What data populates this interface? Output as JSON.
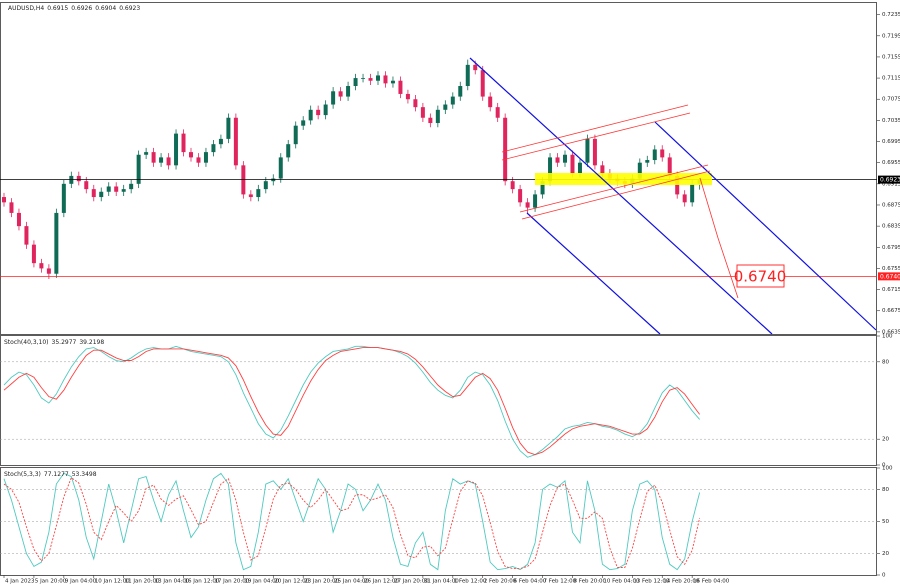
{
  "chart_data": [
    {
      "type": "candlestick",
      "title": "AUDUSD,H4",
      "categories": [
        "4 Jan 2023",
        null,
        null,
        null,
        "5 Jan 20:00",
        null,
        null,
        null,
        "9 Jan 04:00",
        null,
        null,
        null,
        "10 Jan 12:00",
        null,
        null,
        null,
        "11 Jan 20:00",
        null,
        null,
        null,
        "13 Jan 04:00",
        null,
        null,
        null,
        "16 Jan 12:00",
        null,
        null,
        null,
        "17 Jan 20:00",
        null,
        null,
        null,
        "19 Jan 04:00",
        null,
        null,
        null,
        "20 Jan 12:00",
        null,
        null,
        null,
        "23 Jan 20:00",
        null,
        null,
        null,
        "25 Jan 04:00",
        null,
        null,
        null,
        "26 Jan 12:00",
        null,
        null,
        null,
        "27 Jan 20:00",
        null,
        null,
        null,
        "31 Jan 04:00",
        null,
        null,
        null,
        "1 Feb 12:00",
        null,
        null,
        null,
        "2 Feb 20:00",
        null,
        null,
        null,
        "6 Feb 04:00",
        null,
        null,
        null,
        "7 Feb 12:00",
        null,
        null,
        null,
        "8 Feb 20:00",
        null,
        null,
        null,
        "10 Feb 04:00",
        null,
        null,
        null,
        "13 Feb 12:00",
        null,
        null,
        null,
        "14 Feb 20:00",
        null,
        null,
        null,
        "16 Feb 04:00",
        null
      ],
      "open": [
        0.689,
        0.688,
        0.686,
        0.6835,
        0.68,
        0.6765,
        0.6755,
        0.6745,
        0.686,
        0.6915,
        0.693,
        0.692,
        0.6905,
        0.689,
        0.69,
        0.691,
        0.69,
        0.6905,
        0.6915,
        0.697,
        0.6975,
        0.6955,
        0.6965,
        0.695,
        0.701,
        0.6975,
        0.6965,
        0.6955,
        0.6975,
        0.699,
        0.7,
        0.704,
        0.695,
        0.6895,
        0.689,
        0.6905,
        0.692,
        0.6925,
        0.6965,
        0.699,
        0.7025,
        0.7035,
        0.7055,
        0.7045,
        0.7065,
        0.709,
        0.708,
        0.71,
        0.7115,
        0.7115,
        0.711,
        0.712,
        0.7105,
        0.711,
        0.7085,
        0.7075,
        0.706,
        0.704,
        0.703,
        0.7055,
        0.7065,
        0.708,
        0.71,
        0.714,
        0.713,
        0.708,
        0.706,
        0.704,
        0.692,
        0.6905,
        0.688,
        0.687,
        0.6895,
        0.692,
        0.6965,
        0.6955,
        0.697,
        0.6935,
        0.6955,
        0.7,
        0.695,
        0.6935,
        0.6925,
        0.692,
        0.6915,
        0.6925,
        0.6955,
        0.696,
        0.698,
        0.6965,
        0.693,
        0.6895,
        0.688,
        0.6915
      ],
      "high": [
        0.6898,
        0.6888,
        0.6868,
        0.6843,
        0.6808,
        0.6773,
        0.6763,
        0.6868,
        0.6923,
        0.6938,
        0.6938,
        0.6928,
        0.6913,
        0.6908,
        0.6918,
        0.6918,
        0.6913,
        0.6923,
        0.6978,
        0.6983,
        0.6983,
        0.6973,
        0.6973,
        0.7018,
        0.7018,
        0.6983,
        0.6973,
        0.6983,
        0.6998,
        0.7008,
        0.7048,
        0.7048,
        0.6958,
        0.6903,
        0.6913,
        0.6928,
        0.6933,
        0.6973,
        0.6998,
        0.7033,
        0.7043,
        0.7063,
        0.7063,
        0.7073,
        0.7098,
        0.7098,
        0.7108,
        0.7123,
        0.7123,
        0.7123,
        0.7128,
        0.7128,
        0.7118,
        0.7118,
        0.7093,
        0.7083,
        0.7068,
        0.7048,
        0.7063,
        0.7073,
        0.7088,
        0.7108,
        0.715,
        0.7148,
        0.7138,
        0.7088,
        0.7068,
        0.7048,
        0.6928,
        0.6913,
        0.6888,
        0.6903,
        0.6928,
        0.6973,
        0.6973,
        0.6978,
        0.6978,
        0.6963,
        0.7008,
        0.7008,
        0.6958,
        0.6943,
        0.6933,
        0.6928,
        0.6933,
        0.6963,
        0.6968,
        0.6988,
        0.6988,
        0.6973,
        0.6938,
        0.6903,
        0.6923,
        0.6926
      ],
      "low": [
        0.6872,
        0.6852,
        0.6827,
        0.6792,
        0.6757,
        0.6747,
        0.6735,
        0.6737,
        0.6852,
        0.6907,
        0.6912,
        0.6897,
        0.6882,
        0.6882,
        0.6892,
        0.6892,
        0.6892,
        0.6897,
        0.6907,
        0.6962,
        0.6947,
        0.6947,
        0.6942,
        0.6942,
        0.6967,
        0.6957,
        0.6947,
        0.6947,
        0.6967,
        0.6982,
        0.6992,
        0.6942,
        0.6887,
        0.6882,
        0.6882,
        0.6897,
        0.6912,
        0.6917,
        0.6957,
        0.6982,
        0.7017,
        0.7027,
        0.7037,
        0.7037,
        0.7057,
        0.7072,
        0.7072,
        0.7092,
        0.7107,
        0.7102,
        0.7102,
        0.7097,
        0.7097,
        0.7077,
        0.7067,
        0.7052,
        0.7032,
        0.7022,
        0.7022,
        0.7047,
        0.7057,
        0.7072,
        0.7092,
        0.7122,
        0.7072,
        0.7052,
        0.7032,
        0.6912,
        0.6897,
        0.6872,
        0.6858,
        0.6862,
        0.6887,
        0.6912,
        0.6947,
        0.6947,
        0.6927,
        0.6927,
        0.6947,
        0.6942,
        0.6927,
        0.6917,
        0.6912,
        0.6907,
        0.6907,
        0.6917,
        0.6947,
        0.6952,
        0.6957,
        0.6922,
        0.6887,
        0.6872,
        0.6872,
        0.6904
      ],
      "close": [
        0.688,
        0.686,
        0.6835,
        0.68,
        0.6765,
        0.6755,
        0.6745,
        0.686,
        0.6915,
        0.693,
        0.692,
        0.6905,
        0.689,
        0.69,
        0.691,
        0.69,
        0.6905,
        0.6915,
        0.697,
        0.6975,
        0.6955,
        0.6965,
        0.695,
        0.701,
        0.6975,
        0.6965,
        0.6955,
        0.6975,
        0.699,
        0.7,
        0.704,
        0.695,
        0.6895,
        0.689,
        0.6905,
        0.692,
        0.6925,
        0.6965,
        0.699,
        0.7025,
        0.7035,
        0.7055,
        0.7045,
        0.7065,
        0.709,
        0.708,
        0.71,
        0.7115,
        0.7115,
        0.711,
        0.712,
        0.7105,
        0.711,
        0.7085,
        0.7075,
        0.706,
        0.704,
        0.703,
        0.7055,
        0.7065,
        0.708,
        0.71,
        0.714,
        0.713,
        0.708,
        0.706,
        0.704,
        0.692,
        0.6905,
        0.688,
        0.687,
        0.6895,
        0.692,
        0.6965,
        0.6955,
        0.697,
        0.6935,
        0.6955,
        0.7,
        0.695,
        0.6935,
        0.6925,
        0.692,
        0.6915,
        0.6925,
        0.6955,
        0.696,
        0.698,
        0.6965,
        0.693,
        0.6895,
        0.688,
        0.6915,
        0.6923
      ],
      "up_color": "#0f6b55",
      "down_color": "#e0245e",
      "ylim": [
        0.6631,
        0.7257
      ],
      "yticks": [
        0.7235,
        0.7195,
        0.7155,
        0.7115,
        0.7075,
        0.7035,
        0.6995,
        0.6955,
        0.6915,
        0.6875,
        0.6835,
        0.6795,
        0.6755,
        0.6715,
        0.6675,
        0.6635
      ],
      "levels": [
        {
          "price": 0.6923,
          "color": "#000000"
        },
        {
          "price": {
            "value": 0.674,
            "label": "0.6740"
          },
          "color": "#ff2020"
        }
      ]
    },
    {
      "type": "line",
      "title": "Stoch(40,3,10)",
      "ylim": [
        0,
        100
      ],
      "yticks": [
        0,
        20,
        80,
        100
      ],
      "grid": true,
      "series": [
        {
          "name": "Main",
          "color": "#4fc9c0",
          "style": "solid",
          "values": [
            62,
            68,
            72,
            70,
            62,
            52,
            48,
            55,
            66,
            76,
            84,
            90,
            91,
            88,
            84,
            81,
            80,
            83,
            87,
            90,
            91,
            90,
            90,
            92,
            90,
            88,
            87,
            86,
            85,
            84,
            80,
            70,
            56,
            44,
            32,
            24,
            21,
            27,
            38,
            50,
            62,
            72,
            79,
            84,
            88,
            89,
            90,
            92,
            92,
            91,
            91,
            90,
            89,
            87,
            84,
            79,
            72,
            64,
            58,
            54,
            52,
            58,
            68,
            72,
            70,
            62,
            50,
            34,
            20,
            11,
            6,
            8,
            12,
            17,
            22,
            28,
            30,
            31,
            33,
            32,
            30,
            29,
            27,
            24,
            22,
            25,
            32,
            44,
            56,
            62,
            58,
            50,
            42,
            35.2977
          ]
        },
        {
          "name": "Signal",
          "color": "#ff4040",
          "style": "solid",
          "values": [
            58,
            63,
            68,
            71,
            68,
            60,
            53,
            51,
            58,
            68,
            77,
            85,
            89,
            89,
            86,
            83,
            81,
            81,
            84,
            88,
            90,
            90,
            90,
            90,
            90,
            89,
            88,
            87,
            86,
            85,
            83,
            77,
            66,
            53,
            41,
            31,
            24,
            23,
            30,
            42,
            54,
            65,
            74,
            81,
            85,
            88,
            89,
            90,
            91,
            91,
            91,
            90,
            89,
            88,
            86,
            82,
            76,
            69,
            62,
            57,
            53,
            54,
            61,
            68,
            71,
            67,
            58,
            44,
            29,
            17,
            10,
            8,
            10,
            14,
            19,
            24,
            28,
            30,
            31,
            32,
            31,
            30,
            28,
            26,
            24,
            24,
            28,
            37,
            49,
            58,
            60,
            55,
            47,
            39.2198
          ]
        }
      ]
    },
    {
      "type": "line",
      "title": "Stoch(5,3,3)",
      "ylim": [
        0,
        100
      ],
      "yticks": [
        0,
        20,
        50,
        80,
        100
      ],
      "grid": true,
      "series": [
        {
          "name": "Main",
          "color": "#4fc9c0",
          "style": "solid",
          "values": [
            90,
            70,
            45,
            20,
            8,
            12,
            40,
            85,
            95,
            92,
            70,
            35,
            15,
            50,
            85,
            60,
            30,
            60,
            90,
            92,
            70,
            50,
            75,
            88,
            60,
            35,
            45,
            70,
            90,
            95,
            85,
            30,
            5,
            8,
            40,
            85,
            88,
            80,
            90,
            70,
            50,
            70,
            90,
            80,
            40,
            60,
            85,
            80,
            60,
            70,
            85,
            70,
            35,
            10,
            8,
            30,
            40,
            10,
            5,
            60,
            90,
            85,
            88,
            85,
            50,
            12,
            5,
            6,
            8,
            5,
            10,
            30,
            80,
            85,
            82,
            88,
            40,
            30,
            88,
            60,
            10,
            5,
            6,
            10,
            60,
            85,
            88,
            80,
            35,
            10,
            5,
            15,
            50,
            77.1277
          ]
        },
        {
          "name": "Signal",
          "color": "#ff4040",
          "style": "dotted",
          "values": [
            85,
            80,
            68,
            45,
            24,
            13,
            20,
            46,
            73,
            91,
            86,
            66,
            40,
            33,
            50,
            65,
            58,
            50,
            60,
            81,
            84,
            71,
            65,
            71,
            74,
            61,
            47,
            50,
            68,
            85,
            90,
            70,
            40,
            14,
            18,
            44,
            71,
            84,
            86,
            80,
            70,
            63,
            70,
            80,
            70,
            60,
            62,
            75,
            75,
            70,
            72,
            75,
            63,
            38,
            18,
            16,
            26,
            27,
            18,
            25,
            52,
            78,
            88,
            86,
            74,
            49,
            22,
            8,
            6,
            6,
            8,
            15,
            40,
            65,
            82,
            85,
            70,
            53,
            53,
            59,
            53,
            25,
            7,
            7,
            25,
            52,
            78,
            84,
            68,
            42,
            17,
            10,
            23,
            53.3498
          ]
        }
      ]
    }
  ]
}
